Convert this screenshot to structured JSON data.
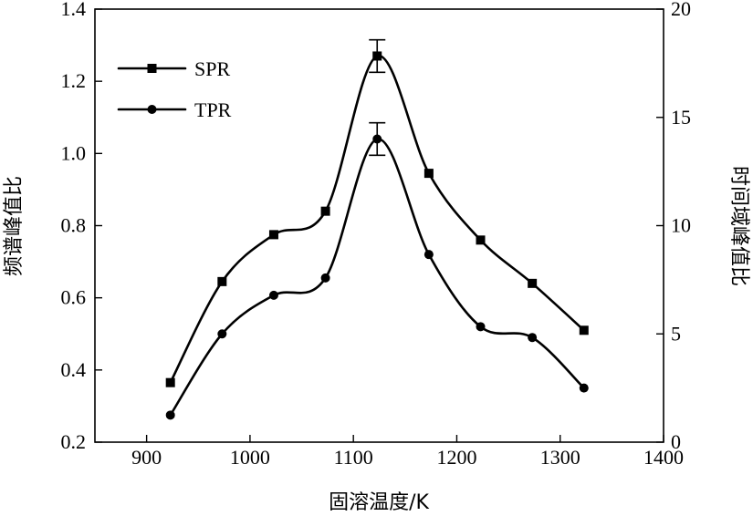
{
  "chart_data": {
    "type": "line",
    "xlabel": "固溶温度/K",
    "ylabel": "频谱峰值比",
    "y2label": "时间域峰值比",
    "xlim": [
      850,
      1400
    ],
    "ylim": [
      0.2,
      1.4
    ],
    "y2lim": [
      0,
      20
    ],
    "xticks": [
      900,
      1000,
      1100,
      1200,
      1300,
      1400
    ],
    "yticks": [
      "0.2",
      "0.4",
      "0.6",
      "0.8",
      "1.0",
      "1.2",
      "1.4"
    ],
    "y2ticks": [
      0,
      5,
      10,
      15,
      20
    ],
    "legend_position": "top-left",
    "series": [
      {
        "name": "SPR",
        "marker": "square",
        "axis": "left",
        "x": [
          923,
          973,
          1023,
          1073,
          1123,
          1173,
          1223,
          1273,
          1323
        ],
        "y": [
          0.365,
          0.645,
          0.775,
          0.84,
          1.27,
          0.945,
          0.76,
          0.64,
          0.51
        ],
        "error_bars": [
          {
            "x": 1123,
            "y": 1.27,
            "err": 0.045
          }
        ]
      },
      {
        "name": "TPR",
        "marker": "circle",
        "axis": "left",
        "x": [
          923,
          973,
          1023,
          1073,
          1123,
          1173,
          1223,
          1273,
          1323
        ],
        "y": [
          0.275,
          0.5,
          0.607,
          0.655,
          1.04,
          0.72,
          0.52,
          0.49,
          0.35
        ],
        "error_bars": [
          {
            "x": 1123,
            "y": 1.04,
            "err": 0.045
          }
        ]
      }
    ]
  }
}
